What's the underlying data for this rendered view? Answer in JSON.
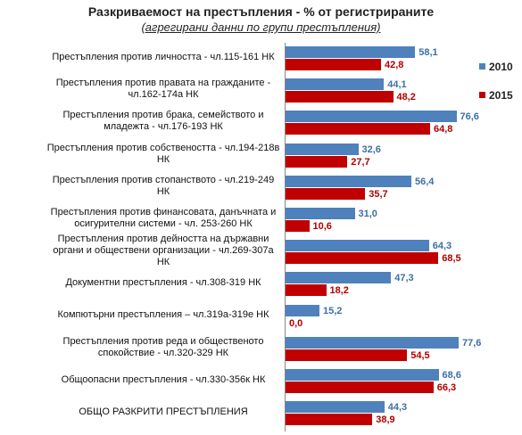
{
  "chart_data": {
    "type": "bar",
    "orientation": "horizontal",
    "title": "Разкриваемост на престъпления - % от регистрираните",
    "subtitle": "(агрегирани данни по групи престъпления)",
    "categories": [
      "Престъпления против личността - чл.115-161 НК",
      "Престъпления против правата на гражданите - чл.162-174а НК",
      "Престъпления против брака, семейството и младежта - чл.176-193 НК",
      "Престъпления против собствеността - чл.194-218в НК",
      "Престъпления против стопанството - чл.219-249 НК",
      "Престъпления против финансовата, данъчната и осигурителни системи - чл. 253-260 НК",
      "Престъпления против дейността на държавни органи и обществени организации - чл.269-307а НК",
      "Документни престъпления - чл.308-319 НК",
      "Компютърни престъпления – чл.319а-319е НК",
      "Престъпления против реда и общественото спокойствие - чл.320-329 НК",
      "Общоопасни престъпления - чл.330-356к НК",
      "ОБЩО РАЗКРИТИ ПРЕСТЪПЛЕНИЯ"
    ],
    "series": [
      {
        "name": "2010",
        "color": "#4f81bd",
        "values": [
          58.1,
          44.1,
          76.6,
          32.6,
          56.4,
          31.0,
          64.3,
          47.3,
          15.2,
          77.6,
          68.6,
          44.3
        ],
        "value_labels": [
          "58,1",
          "44,1",
          "76,6",
          "32,6",
          "56,4",
          "31,0",
          "64,3",
          "47,3",
          "15,2",
          "77,6",
          "68,6",
          "44,3"
        ]
      },
      {
        "name": "2015",
        "color": "#c00000",
        "values": [
          42.8,
          48.2,
          64.8,
          27.7,
          35.7,
          10.6,
          68.5,
          18.2,
          0.0,
          54.5,
          66.3,
          38.9
        ],
        "value_labels": [
          "42,8",
          "48,2",
          "64,8",
          "27,7",
          "35,7",
          "10,6",
          "68,5",
          "18,2",
          "0,0",
          "54,5",
          "66,3",
          "38,9"
        ]
      }
    ],
    "legend": "right"
  }
}
